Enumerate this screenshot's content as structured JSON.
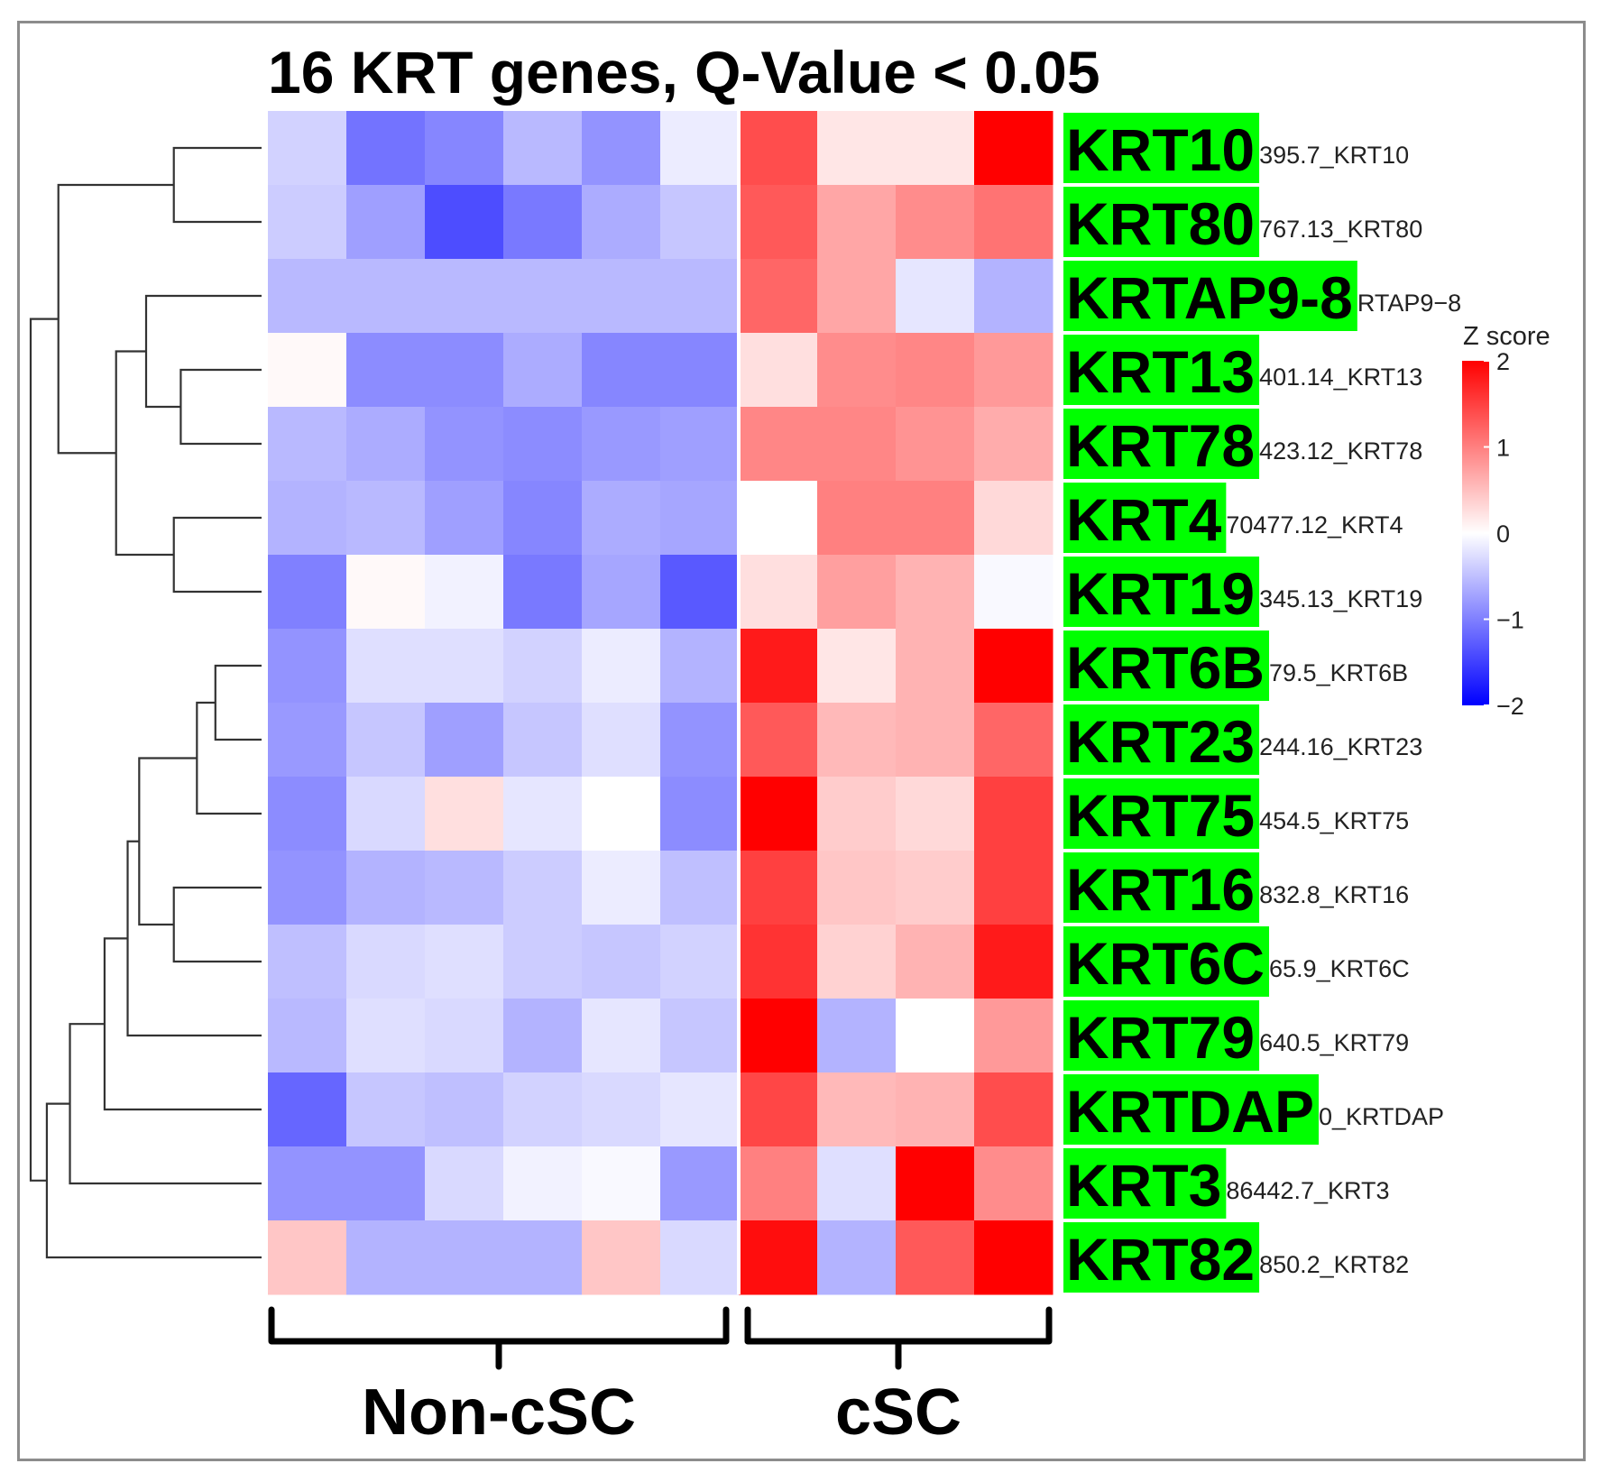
{
  "chart_data": {
    "type": "heatmap",
    "title": "16 KRT genes, Q-Value < 0.05",
    "rows": [
      {
        "big": "KRT10",
        "small": "395.7_KRT10"
      },
      {
        "big": "KRT80",
        "small": "767.13_KRT80"
      },
      {
        "big": "KRTAP9-8",
        "small": "RTAP9−8"
      },
      {
        "big": "KRT13",
        "small": "401.14_KRT13"
      },
      {
        "big": "KRT78",
        "small": "423.12_KRT78"
      },
      {
        "big": "KRT4",
        "small": "70477.12_KRT4"
      },
      {
        "big": "KRT19",
        "small": "345.13_KRT19"
      },
      {
        "big": "KRT6B",
        "small": "79.5_KRT6B"
      },
      {
        "big": "KRT23",
        "small": "244.16_KRT23"
      },
      {
        "big": "KRT75",
        "small": "454.5_KRT75"
      },
      {
        "big": "KRT16",
        "small": "832.8_KRT16"
      },
      {
        "big": "KRT6C",
        "small": "65.9_KRT6C"
      },
      {
        "big": "KRT79",
        "small": "640.5_KRT79"
      },
      {
        "big": "KRTDAP",
        "small": "0_KRTDAP"
      },
      {
        "big": "KRT3",
        "small": "86442.7_KRT3"
      },
      {
        "big": "KRT82",
        "small": "850.2_KRT82"
      }
    ],
    "groups": [
      {
        "name": "Non-cSC",
        "columns": 6
      },
      {
        "name": "cSC",
        "columns": 4
      }
    ],
    "values": [
      [
        -0.35,
        -1.1,
        -0.95,
        -0.55,
        -0.85,
        -0.15,
        1.4,
        0.2,
        0.2,
        2.0
      ],
      [
        -0.4,
        -0.75,
        -1.4,
        -1.05,
        -0.65,
        -0.45,
        1.3,
        0.7,
        0.9,
        1.1
      ],
      [
        -0.55,
        -0.55,
        -0.55,
        -0.55,
        -0.55,
        -0.55,
        1.2,
        0.7,
        -0.2,
        -0.6
      ],
      [
        0.05,
        -0.9,
        -0.9,
        -0.65,
        -0.95,
        -0.95,
        0.25,
        0.9,
        0.95,
        0.8
      ],
      [
        -0.55,
        -0.65,
        -0.85,
        -0.9,
        -0.8,
        -0.75,
        0.95,
        0.95,
        0.85,
        0.65
      ],
      [
        -0.6,
        -0.55,
        -0.75,
        -0.95,
        -0.65,
        -0.7,
        0.0,
        1.0,
        1.0,
        0.3
      ],
      [
        -1.0,
        0.05,
        -0.1,
        -1.05,
        -0.7,
        -1.3,
        0.25,
        0.75,
        0.6,
        -0.05
      ],
      [
        -0.85,
        -0.25,
        -0.25,
        -0.35,
        -0.15,
        -0.6,
        1.8,
        0.2,
        0.6,
        2.0
      ],
      [
        -0.8,
        -0.45,
        -0.75,
        -0.45,
        -0.25,
        -0.85,
        1.3,
        0.55,
        0.6,
        1.2
      ],
      [
        -0.9,
        -0.3,
        0.25,
        -0.2,
        0.0,
        -0.9,
        2.0,
        0.4,
        0.3,
        1.5
      ],
      [
        -0.85,
        -0.6,
        -0.55,
        -0.4,
        -0.15,
        -0.5,
        1.5,
        0.45,
        0.4,
        1.5
      ],
      [
        -0.5,
        -0.3,
        -0.25,
        -0.4,
        -0.45,
        -0.35,
        1.6,
        0.35,
        0.6,
        1.8
      ],
      [
        -0.55,
        -0.25,
        -0.3,
        -0.6,
        -0.2,
        -0.45,
        2.0,
        -0.6,
        0.0,
        0.8
      ],
      [
        -1.2,
        -0.45,
        -0.5,
        -0.35,
        -0.3,
        -0.2,
        1.45,
        0.55,
        0.6,
        1.4
      ],
      [
        -0.85,
        -0.85,
        -0.3,
        -0.1,
        -0.05,
        -0.8,
        1.0,
        -0.25,
        2.0,
        0.9
      ],
      [
        0.45,
        -0.6,
        -0.6,
        -0.6,
        0.45,
        -0.3,
        1.9,
        -0.6,
        1.3,
        2.0
      ]
    ],
    "colorbar": {
      "title": "Z score",
      "ticks": [
        2,
        1,
        0,
        -1,
        -2
      ],
      "tick_labels": [
        "2",
        "1",
        "0",
        "−1",
        "−2"
      ],
      "min": -2,
      "max": 2
    },
    "colors": {
      "low": "#0000ff",
      "mid": "#ffffff",
      "high": "#ff0000",
      "label_bg": "#00ff00",
      "frame": "#8c8c8c"
    },
    "dendrogram": {
      "order": [
        "KRT10",
        "KRT80",
        "KRTAP9-8",
        "KRT13",
        "KRT78",
        "KRT4",
        "KRT19",
        "KRT6B",
        "KRT23",
        "KRT75",
        "KRT16",
        "KRT6C",
        "KRT79",
        "KRTDAP",
        "KRT3",
        "KRT82"
      ],
      "merges": [
        {
          "a": 0,
          "b": 1,
          "height": 0.38
        },
        {
          "a": 3,
          "b": 4,
          "height": 0.35
        },
        {
          "a": 2,
          "b": 17,
          "height": 0.5
        },
        {
          "a": 5,
          "b": 6,
          "height": 0.38
        },
        {
          "a": 18,
          "b": 19,
          "height": 0.63
        },
        {
          "a": 16,
          "b": 20,
          "height": 0.88
        },
        {
          "a": 7,
          "b": 8,
          "height": 0.2
        },
        {
          "a": 22,
          "b": 9,
          "height": 0.28
        },
        {
          "a": 10,
          "b": 11,
          "height": 0.38
        },
        {
          "a": 23,
          "b": 24,
          "height": 0.53
        },
        {
          "a": 25,
          "b": 12,
          "height": 0.58
        },
        {
          "a": 26,
          "b": 13,
          "height": 0.68
        },
        {
          "a": 27,
          "b": 14,
          "height": 0.83
        },
        {
          "a": 28,
          "b": 15,
          "height": 0.93
        },
        {
          "a": 21,
          "b": 29,
          "height": 1.0
        }
      ]
    }
  }
}
